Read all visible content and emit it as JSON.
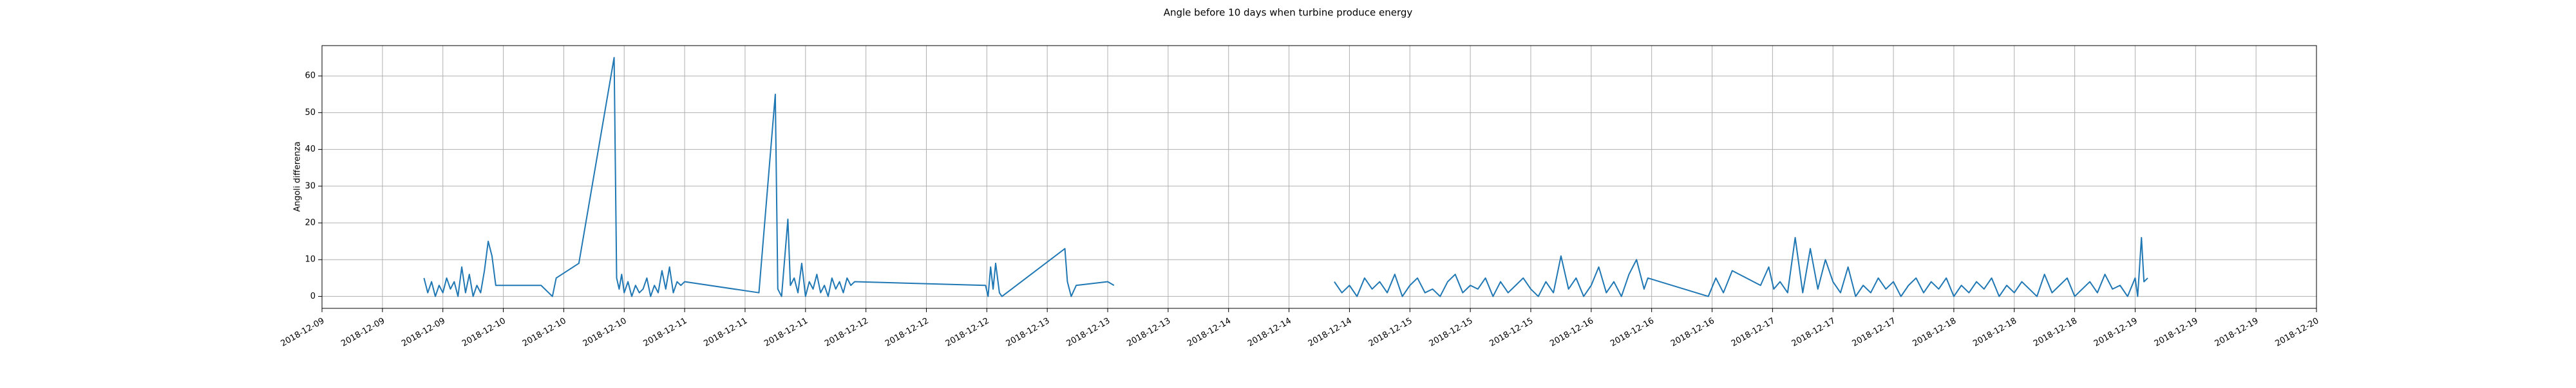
{
  "chart_data": {
    "type": "line",
    "title": "Angle before 10 days when turbine produce energy",
    "y_label": "Angoli differenza",
    "color": "#1f77b4",
    "grid": true,
    "xlim": [
      "2018-12-09 00:00",
      "2018-12-20 00:00"
    ],
    "ylim": [
      -3.25,
      68.25
    ],
    "yticks": [
      0,
      10,
      20,
      30,
      40,
      50,
      60
    ],
    "xticks": [
      {
        "value": "2018-12-09 00:00",
        "label": "2018-12-09"
      },
      {
        "value": "2018-12-09 08:00",
        "label": "2018-12-09"
      },
      {
        "value": "2018-12-09 16:00",
        "label": "2018-12-09"
      },
      {
        "value": "2018-12-10 00:00",
        "label": "2018-12-10"
      },
      {
        "value": "2018-12-10 08:00",
        "label": "2018-12-10"
      },
      {
        "value": "2018-12-10 16:00",
        "label": "2018-12-10"
      },
      {
        "value": "2018-12-11 00:00",
        "label": "2018-12-11"
      },
      {
        "value": "2018-12-11 08:00",
        "label": "2018-12-11"
      },
      {
        "value": "2018-12-11 16:00",
        "label": "2018-12-11"
      },
      {
        "value": "2018-12-12 00:00",
        "label": "2018-12-12"
      },
      {
        "value": "2018-12-12 08:00",
        "label": "2018-12-12"
      },
      {
        "value": "2018-12-12 16:00",
        "label": "2018-12-12"
      },
      {
        "value": "2018-12-13 00:00",
        "label": "2018-12-13"
      },
      {
        "value": "2018-12-13 08:00",
        "label": "2018-12-13"
      },
      {
        "value": "2018-12-13 16:00",
        "label": "2018-12-13"
      },
      {
        "value": "2018-12-14 00:00",
        "label": "2018-12-14"
      },
      {
        "value": "2018-12-14 08:00",
        "label": "2018-12-14"
      },
      {
        "value": "2018-12-14 16:00",
        "label": "2018-12-14"
      },
      {
        "value": "2018-12-15 00:00",
        "label": "2018-12-15"
      },
      {
        "value": "2018-12-15 08:00",
        "label": "2018-12-15"
      },
      {
        "value": "2018-12-15 16:00",
        "label": "2018-12-15"
      },
      {
        "value": "2018-12-16 00:00",
        "label": "2018-12-16"
      },
      {
        "value": "2018-12-16 08:00",
        "label": "2018-12-16"
      },
      {
        "value": "2018-12-16 16:00",
        "label": "2018-12-16"
      },
      {
        "value": "2018-12-17 00:00",
        "label": "2018-12-17"
      },
      {
        "value": "2018-12-17 08:00",
        "label": "2018-12-17"
      },
      {
        "value": "2018-12-17 16:00",
        "label": "2018-12-17"
      },
      {
        "value": "2018-12-18 00:00",
        "label": "2018-12-18"
      },
      {
        "value": "2018-12-18 08:00",
        "label": "2018-12-18"
      },
      {
        "value": "2018-12-18 16:00",
        "label": "2018-12-18"
      },
      {
        "value": "2018-12-19 00:00",
        "label": "2018-12-19"
      },
      {
        "value": "2018-12-19 08:00",
        "label": "2018-12-19"
      },
      {
        "value": "2018-12-19 16:00",
        "label": "2018-12-19"
      },
      {
        "value": "2018-12-20 00:00",
        "label": "2018-12-20"
      }
    ],
    "x": [
      "2018-12-09 13:30",
      "2018-12-09 14:00",
      "2018-12-09 14:30",
      "2018-12-09 15:00",
      "2018-12-09 15:30",
      "2018-12-09 16:00",
      "2018-12-09 16:30",
      "2018-12-09 17:00",
      "2018-12-09 17:30",
      "2018-12-09 18:00",
      "2018-12-09 18:30",
      "2018-12-09 19:00",
      "2018-12-09 19:30",
      "2018-12-09 20:00",
      "2018-12-09 20:30",
      "2018-12-09 21:00",
      "2018-12-09 21:30",
      "2018-12-09 22:00",
      "2018-12-09 22:30",
      "2018-12-09 23:00",
      "2018-12-10 05:00",
      "2018-12-10 06:00",
      "2018-12-10 06:30",
      "2018-12-10 07:00",
      "2018-12-10 10:00",
      "2018-12-10 14:40",
      "2018-12-10 15:00",
      "2018-12-10 15:20",
      "2018-12-10 15:40",
      "2018-12-10 16:00",
      "2018-12-10 16:30",
      "2018-12-10 17:00",
      "2018-12-10 17:30",
      "2018-12-10 18:00",
      "2018-12-10 18:30",
      "2018-12-10 19:00",
      "2018-12-10 19:30",
      "2018-12-10 20:00",
      "2018-12-10 20:30",
      "2018-12-10 21:00",
      "2018-12-10 21:30",
      "2018-12-10 22:00",
      "2018-12-10 22:30",
      "2018-12-10 23:00",
      "2018-12-10 23:30",
      "2018-12-11 00:00",
      "2018-12-11 09:50",
      "2018-12-11 12:00",
      "2018-12-11 12:20",
      "2018-12-11 12:50",
      "2018-12-11 13:40",
      "2018-12-11 14:00",
      "2018-12-11 14:30",
      "2018-12-11 15:00",
      "2018-12-11 15:30",
      "2018-12-11 16:00",
      "2018-12-11 16:30",
      "2018-12-11 17:00",
      "2018-12-11 17:30",
      "2018-12-11 18:00",
      "2018-12-11 18:30",
      "2018-12-11 19:00",
      "2018-12-11 19:30",
      "2018-12-11 20:00",
      "2018-12-11 20:30",
      "2018-12-11 21:00",
      "2018-12-11 21:30",
      "2018-12-11 22:00",
      "2018-12-11 22:30",
      "2018-12-12 15:50",
      "2018-12-12 16:10",
      "2018-12-12 16:30",
      "2018-12-12 16:50",
      "2018-12-12 17:10",
      "2018-12-12 17:40",
      "2018-12-12 18:00",
      "2018-12-13 02:20",
      "2018-12-13 02:40",
      "2018-12-13 03:10",
      "2018-12-13 03:50",
      "2018-12-13 08:00",
      "2018-12-13 08:50",
      "2018-12-14 00:00",
      "2018-12-14 14:00",
      "2018-12-14 15:00",
      "2018-12-14 16:00",
      "2018-12-14 17:00",
      "2018-12-14 18:00",
      "2018-12-14 19:00",
      "2018-12-14 20:00",
      "2018-12-14 21:00",
      "2018-12-14 22:00",
      "2018-12-14 23:00",
      "2018-12-15 00:00",
      "2018-12-15 01:00",
      "2018-12-15 02:00",
      "2018-12-15 03:00",
      "2018-12-15 04:00",
      "2018-12-15 05:00",
      "2018-12-15 06:00",
      "2018-12-15 07:00",
      "2018-12-15 08:00",
      "2018-12-15 09:00",
      "2018-12-15 10:00",
      "2018-12-15 11:00",
      "2018-12-15 12:00",
      "2018-12-15 13:00",
      "2018-12-15 14:00",
      "2018-12-15 15:00",
      "2018-12-15 16:00",
      "2018-12-15 17:00",
      "2018-12-15 18:00",
      "2018-12-15 19:00",
      "2018-12-15 20:00",
      "2018-12-15 21:00",
      "2018-12-15 22:00",
      "2018-12-15 23:00",
      "2018-12-16 00:00",
      "2018-12-16 01:00",
      "2018-12-16 02:00",
      "2018-12-16 03:00",
      "2018-12-16 04:00",
      "2018-12-16 05:00",
      "2018-12-16 06:00",
      "2018-12-16 07:00",
      "2018-12-16 07:30",
      "2018-12-16 15:30",
      "2018-12-16 16:30",
      "2018-12-16 17:30",
      "2018-12-16 18:40",
      "2018-12-16 22:25",
      "2018-12-16 23:30",
      "2018-12-17 00:10",
      "2018-12-17 01:00",
      "2018-12-17 02:00",
      "2018-12-17 03:00",
      "2018-12-17 04:00",
      "2018-12-17 05:00",
      "2018-12-17 06:00",
      "2018-12-17 07:00",
      "2018-12-17 08:00",
      "2018-12-17 09:00",
      "2018-12-17 10:00",
      "2018-12-17 11:00",
      "2018-12-17 12:00",
      "2018-12-17 13:00",
      "2018-12-17 14:00",
      "2018-12-17 15:00",
      "2018-12-17 16:00",
      "2018-12-17 17:00",
      "2018-12-17 18:00",
      "2018-12-17 19:00",
      "2018-12-17 20:00",
      "2018-12-17 21:00",
      "2018-12-17 22:00",
      "2018-12-17 23:00",
      "2018-12-18 00:00",
      "2018-12-18 01:00",
      "2018-12-18 02:00",
      "2018-12-18 03:00",
      "2018-12-18 04:00",
      "2018-12-18 05:00",
      "2018-12-18 06:00",
      "2018-12-18 07:00",
      "2018-12-18 08:00",
      "2018-12-18 09:00",
      "2018-12-18 10:00",
      "2018-12-18 11:00",
      "2018-12-18 12:00",
      "2018-12-18 13:00",
      "2018-12-18 14:00",
      "2018-12-18 15:00",
      "2018-12-18 16:00",
      "2018-12-18 17:00",
      "2018-12-18 18:00",
      "2018-12-18 19:00",
      "2018-12-18 20:00",
      "2018-12-18 21:00",
      "2018-12-18 22:00",
      "2018-12-18 23:00",
      "2018-12-19 00:00",
      "2018-12-19 00:20",
      "2018-12-19 00:50",
      "2018-12-19 01:10",
      "2018-12-19 01:40"
    ],
    "values": [
      5,
      1,
      4,
      0,
      3,
      1,
      5,
      2,
      4,
      0,
      8,
      1,
      6,
      0,
      3,
      1,
      7,
      15,
      11,
      3,
      3,
      1,
      0,
      5,
      9,
      65,
      5,
      2,
      6,
      1,
      4,
      0,
      3,
      1,
      2,
      5,
      0,
      3,
      1,
      7,
      2,
      8,
      1,
      4,
      3,
      4,
      1,
      55,
      2,
      0,
      21,
      3,
      5,
      1,
      9,
      0,
      4,
      2,
      6,
      1,
      3,
      0,
      5,
      2,
      4,
      1,
      5,
      3,
      4,
      3,
      0,
      8,
      2,
      9,
      1,
      0,
      13,
      4,
      0,
      3,
      4,
      3,
      null,
      4,
      1,
      3,
      0,
      5,
      2,
      4,
      1,
      6,
      0,
      3,
      5,
      1,
      2,
      0,
      4,
      6,
      1,
      3,
      2,
      5,
      0,
      4,
      1,
      3,
      5,
      2,
      0,
      4,
      1,
      11,
      2,
      5,
      0,
      3,
      8,
      1,
      4,
      0,
      6,
      10,
      2,
      5,
      0,
      5,
      1,
      7,
      3,
      8,
      2,
      4,
      1,
      16,
      1,
      13,
      2,
      10,
      4,
      1,
      8,
      0,
      3,
      1,
      5,
      2,
      4,
      0,
      3,
      5,
      1,
      4,
      2,
      5,
      0,
      3,
      1,
      4,
      2,
      5,
      0,
      3,
      1,
      4,
      2,
      0,
      6,
      1,
      3,
      5,
      0,
      2,
      4,
      1,
      6,
      2,
      3,
      0,
      5,
      0,
      16,
      4,
      5
    ]
  }
}
